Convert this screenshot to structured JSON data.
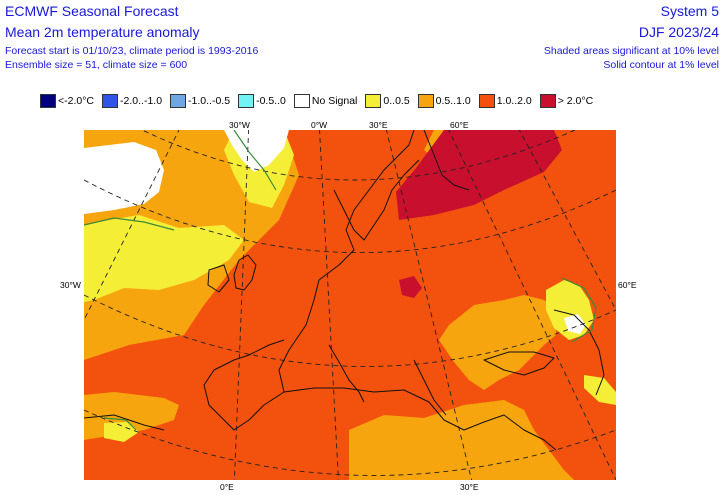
{
  "header": {
    "org_title": "ECMWF Seasonal Forecast",
    "product_title": "Mean 2m temperature anomaly",
    "forecast_info": "Forecast start is 01/10/23, climate period is 1993-2016",
    "ensemble_info": "Ensemble size = 51, climate size = 600",
    "system": "System 5",
    "season": "DJF 2023/24",
    "significance_shaded": "Shaded areas significant at 10% level",
    "significance_contour": "Solid contour at 1% level"
  },
  "legend": [
    {
      "label": "<-2.0°C",
      "color": "#00007f"
    },
    {
      "label": "-2.0..-1.0",
      "color": "#3054e8"
    },
    {
      "label": "-1.0..-0.5",
      "color": "#6fa6e6"
    },
    {
      "label": "-0.5..0",
      "color": "#72f4f4"
    },
    {
      "label": "No Signal",
      "color": "#ffffff"
    },
    {
      "label": "0..0.5",
      "color": "#f5ee37"
    },
    {
      "label": "0.5..1.0",
      "color": "#f7a50f"
    },
    {
      "label": "1.0..2.0",
      "color": "#f2520e"
    },
    {
      "label": "> 2.0°C",
      "color": "#c8102e"
    }
  ],
  "map": {
    "region": "Europe",
    "top_ticks": [
      "30°W",
      "0°W",
      "30°E",
      "60°E"
    ],
    "side_ticks": [
      "30°W",
      "60°E"
    ],
    "bottom_ticks": [
      "0°E",
      "30°E"
    ],
    "colors": {
      "no_signal": "#ffffff",
      "weak_warm": "#f5ee37",
      "moderate_warm": "#f7a50f",
      "strong_warm": "#f2520e",
      "very_strong_warm": "#c8102e",
      "coast": "#111111",
      "grid": "#222222",
      "contour": "#3a8a3a"
    }
  }
}
